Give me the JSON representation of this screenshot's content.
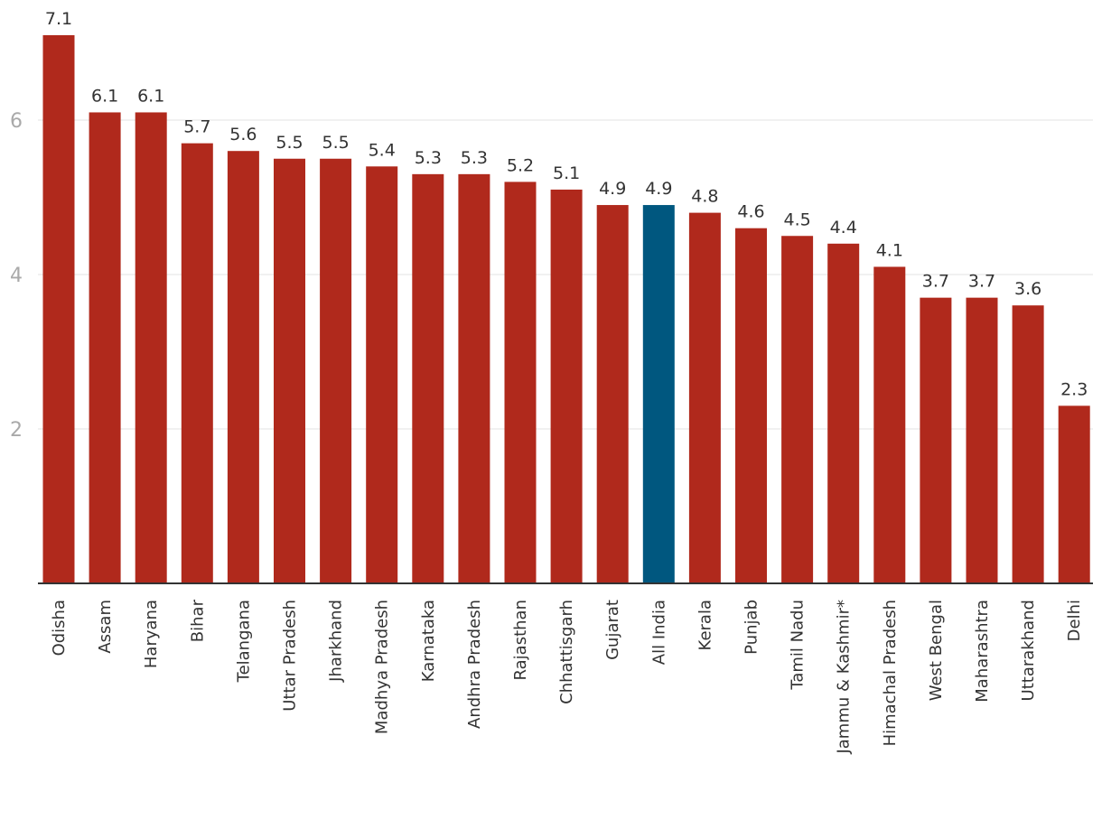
{
  "chart_data": {
    "type": "bar",
    "title": "",
    "xlabel": "",
    "ylabel": "",
    "ylim": [
      0,
      7.2
    ],
    "yticks": [
      "2",
      "4",
      "6"
    ],
    "grid": true,
    "legend": "none",
    "bar_color": "#b0291c",
    "highlight_color": "#00577f",
    "highlight_category": "All India",
    "categories": [
      "Odisha",
      "Assam",
      "Haryana",
      "Bihar",
      "Telangana",
      "Uttar Pradesh",
      "Jharkhand",
      "Madhya Pradesh",
      "Karnataka",
      "Andhra Pradesh",
      "Rajasthan",
      "Chhattisgarh",
      "Gujarat",
      "All India",
      "Kerala",
      "Punjab",
      "Tamil Nadu",
      "Jammu & Kashmir*",
      "Himachal Pradesh",
      "West Bengal",
      "Maharashtra",
      "Uttarakhand",
      "Delhi"
    ],
    "values": [
      7.1,
      6.1,
      6.1,
      5.7,
      5.6,
      5.5,
      5.5,
      5.4,
      5.3,
      5.3,
      5.2,
      5.1,
      4.9,
      4.9,
      4.8,
      4.6,
      4.5,
      4.4,
      4.1,
      3.7,
      3.7,
      3.6,
      2.3
    ],
    "value_labels": [
      "7.1",
      "6.1",
      "6.1",
      "5.7",
      "5.6",
      "5.5",
      "5.5",
      "5.4",
      "5.3",
      "5.3",
      "5.2",
      "5.1",
      "4.9",
      "4.9",
      "4.8",
      "4.6",
      "4.5",
      "4.4",
      "4.1",
      "3.7",
      "3.7",
      "3.6",
      "2.3"
    ]
  }
}
